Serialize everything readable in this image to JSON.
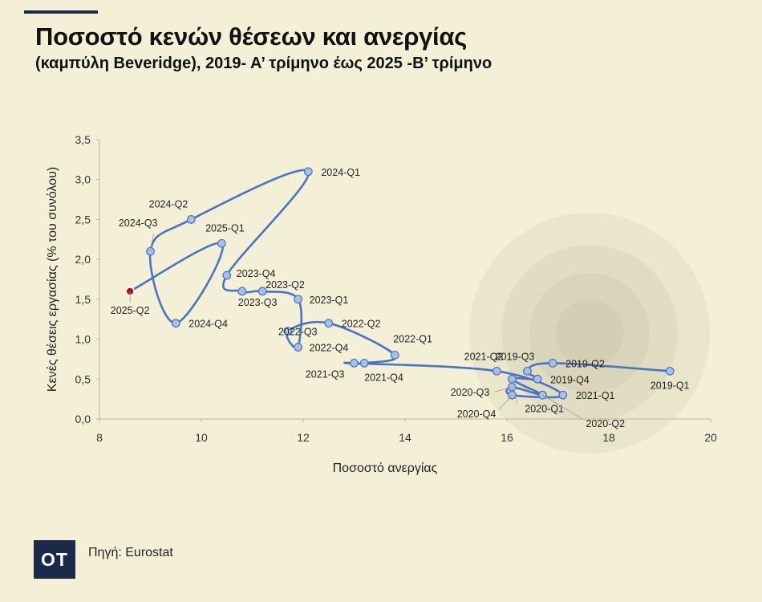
{
  "header": {
    "title": "Ποσοστό κενών θέσεων και ανεργίας",
    "subtitle": "(καμπύλη Beveridge), 2019- Α’ τρίμηνο έως 2025 -Β’ τρίμηνο"
  },
  "footer": {
    "logo_text": "OT",
    "source": "Πηγή: Eurostat"
  },
  "colors": {
    "background": "#f4f0d8",
    "line": "#4a73c0",
    "marker": "#a8bfe6",
    "highlight": "#b01010",
    "brand": "#1c2a4a"
  },
  "chart_data": {
    "type": "scatter",
    "connected": true,
    "xlabel": "Ποσοστό ανεργίας",
    "ylabel": "Κενές θέσεις εργασίας (% του συνόλου)",
    "xlim": [
      8,
      20
    ],
    "ylim": [
      0,
      3.5
    ],
    "xticks": [
      "8",
      "10",
      "12",
      "14",
      "16",
      "18",
      "20"
    ],
    "yticks": [
      "0,0",
      "0,5",
      "1,0",
      "1,5",
      "2,0",
      "2,5",
      "3,0",
      "3,5"
    ],
    "grid": false,
    "points": [
      {
        "label": "2019-Q1",
        "x": 19.2,
        "y": 0.6
      },
      {
        "label": "2019-Q2",
        "x": 16.9,
        "y": 0.7
      },
      {
        "label": "2019-Q3",
        "x": 16.4,
        "y": 0.6
      },
      {
        "label": "2019-Q4",
        "x": 16.6,
        "y": 0.5
      },
      {
        "label": "2020-Q1",
        "x": 16.1,
        "y": 0.5
      },
      {
        "label": "2020-Q2",
        "x": 16.7,
        "y": 0.3
      },
      {
        "label": "2020-Q3",
        "x": 16.1,
        "y": 0.4
      },
      {
        "label": "2020-Q4",
        "x": 16.1,
        "y": 0.3
      },
      {
        "label": "2021-Q1",
        "x": 17.1,
        "y": 0.3
      },
      {
        "label": "2021-Q2",
        "x": 15.8,
        "y": 0.6
      },
      {
        "label": "2021-Q3",
        "x": 13.0,
        "y": 0.7
      },
      {
        "label": "2021-Q4",
        "x": 13.2,
        "y": 0.7
      },
      {
        "label": "2022-Q1",
        "x": 13.8,
        "y": 0.8
      },
      {
        "label": "2022-Q2",
        "x": 12.5,
        "y": 1.2
      },
      {
        "label": "2022-Q3",
        "x": 11.7,
        "y": 1.1
      },
      {
        "label": "2022-Q4",
        "x": 11.9,
        "y": 0.9
      },
      {
        "label": "2023-Q1",
        "x": 11.9,
        "y": 1.5
      },
      {
        "label": "2023-Q2",
        "x": 11.2,
        "y": 1.6
      },
      {
        "label": "2023-Q3",
        "x": 10.8,
        "y": 1.6
      },
      {
        "label": "2023-Q4",
        "x": 10.5,
        "y": 1.8
      },
      {
        "label": "2024-Q1",
        "x": 12.1,
        "y": 3.1
      },
      {
        "label": "2024-Q2",
        "x": 9.8,
        "y": 2.5
      },
      {
        "label": "2024-Q3",
        "x": 9.0,
        "y": 2.1
      },
      {
        "label": "2024-Q4",
        "x": 9.5,
        "y": 1.2
      },
      {
        "label": "2025-Q1",
        "x": 10.4,
        "y": 2.2
      },
      {
        "label": "2025-Q2",
        "x": 8.6,
        "y": 1.6
      }
    ],
    "highlight_point": "2025-Q2"
  }
}
